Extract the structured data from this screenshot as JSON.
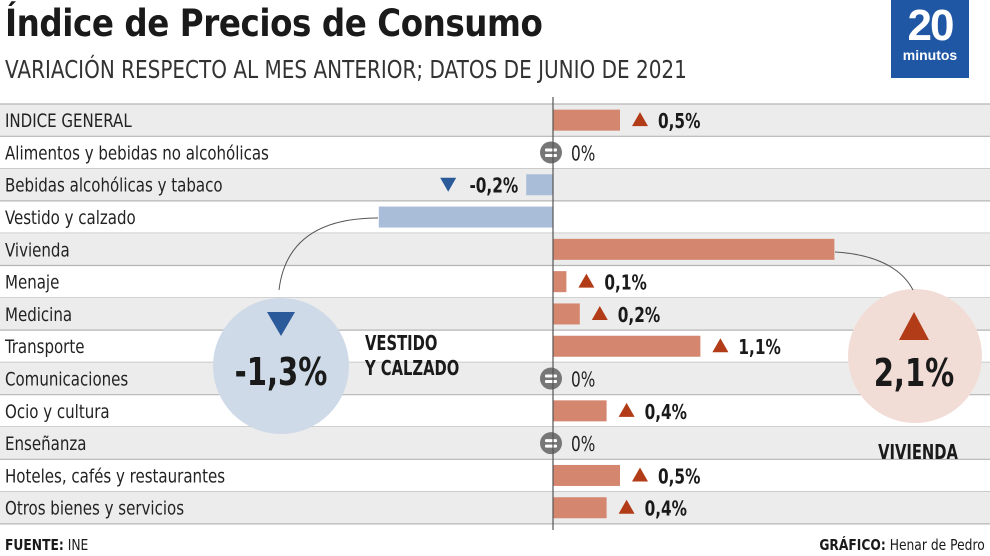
{
  "header": {
    "title": "Índice de Precios de Consumo",
    "subtitle": "VARIACIÓN RESPECTO AL MES ANTERIOR; DATOS DE JUNIO DE 2021",
    "logo_number": "20",
    "logo_word": "minutos"
  },
  "colors": {
    "positive_bar": "#d4866f",
    "positive_arrow": "#b23c17",
    "negative_bar": "#a9bdd8",
    "negative_arrow": "#2a5a9a",
    "row_alt": "#ececec",
    "zero_icon": "#777777",
    "highlight_positive_circle": "#f2ddd6",
    "highlight_negative_circle": "#cfdae8"
  },
  "chart_data": {
    "type": "bar",
    "orientation": "horizontal",
    "title": "Índice de Precios de Consumo",
    "subtitle": "VARIACIÓN RESPECTO AL MES ANTERIOR; DATOS DE JUNIO DE 2021",
    "unit": "%",
    "categories": [
      "INDICE GENERAL",
      "Alimentos y bebidas no alcohólicas",
      "Bebidas alcohólicas y tabaco",
      "Vestido y calzado",
      "Vivienda",
      "Menaje",
      "Medicina",
      "Transporte",
      "Comunicaciones",
      "Ocio y cultura",
      "Enseñanza",
      "Hoteles, cafés y restaurantes",
      "Otros bienes y servicios"
    ],
    "values": [
      0.5,
      0,
      -0.2,
      -1.3,
      2.1,
      0.1,
      0.2,
      1.1,
      0,
      0.4,
      0,
      0.5,
      0.4
    ],
    "value_labels": [
      "0,5%",
      "0%",
      "-0,2%",
      "",
      "",
      "0,1%",
      "0,2%",
      "1,1%",
      "0%",
      "0,4%",
      "0%",
      "0,5%",
      "0,4%"
    ],
    "xlim": [
      -1.3,
      2.1
    ],
    "highlights": [
      {
        "category": "Vestido y calzado",
        "label": "-1,3%",
        "caption_line1": "VESTIDO",
        "caption_line2": "Y CALZADO",
        "direction": "down"
      },
      {
        "category": "Vivienda",
        "label": "2,1%",
        "caption_line1": "VIVIENDA",
        "caption_line2": "",
        "direction": "up"
      }
    ]
  },
  "footer": {
    "source_label": "FUENTE:",
    "source_value": " INE",
    "credit_label": "GRÁFICO:",
    "credit_value": " Henar de Pedro"
  }
}
